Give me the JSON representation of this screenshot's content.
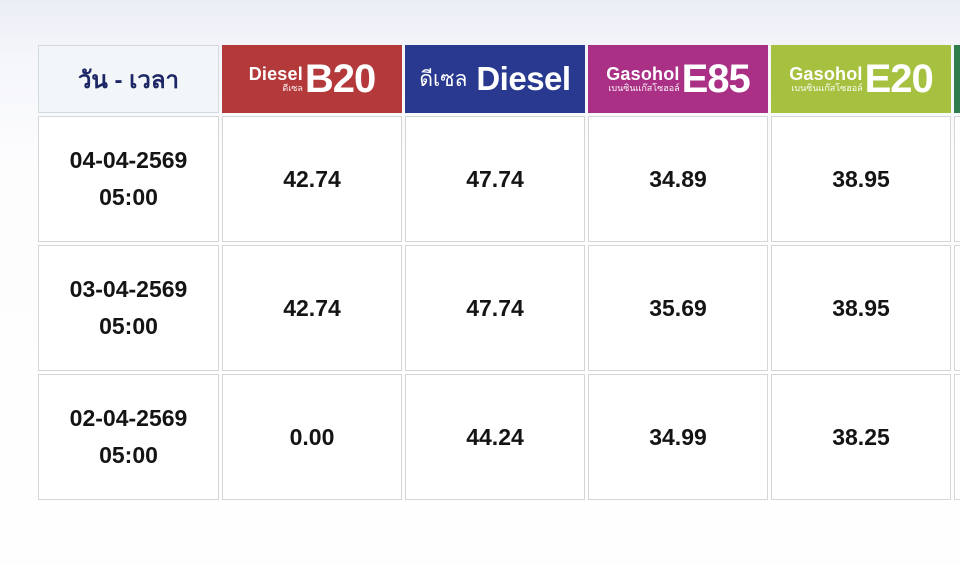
{
  "table": {
    "date_header": "วัน - เวลา",
    "columns": [
      {
        "id": "diesel-b20",
        "variant": "stacked",
        "brand": "Diesel",
        "brand_sub": "ดีเซล",
        "code": "B20",
        "color": "#B4393B"
      },
      {
        "id": "diesel",
        "variant": "inline",
        "prefix": "ดีเซล",
        "code": "Diesel",
        "color": "#28398F"
      },
      {
        "id": "gasohol-e85",
        "variant": "stacked",
        "brand": "Gasohol",
        "brand_sub": "เบนซินแก๊สโซฮอล์",
        "code": "E85",
        "color": "#A93085"
      },
      {
        "id": "gasohol-e20",
        "variant": "stacked",
        "brand": "Gasohol",
        "brand_sub": "เบนซินแก๊สโซฮอล์",
        "code": "E20",
        "color": "#A6C140"
      },
      {
        "id": "partial-column",
        "variant": "empty",
        "code": "",
        "color": "#2F7C4D"
      }
    ],
    "rows": [
      {
        "date": "04-04-2569",
        "time": "05:00",
        "values": [
          "42.74",
          "47.74",
          "34.89",
          "38.95",
          ""
        ]
      },
      {
        "date": "03-04-2569",
        "time": "05:00",
        "values": [
          "42.74",
          "47.74",
          "35.69",
          "38.95",
          ""
        ]
      },
      {
        "date": "02-04-2569",
        "time": "05:00",
        "values": [
          "0.00",
          "44.24",
          "34.99",
          "38.25",
          ""
        ]
      }
    ]
  }
}
